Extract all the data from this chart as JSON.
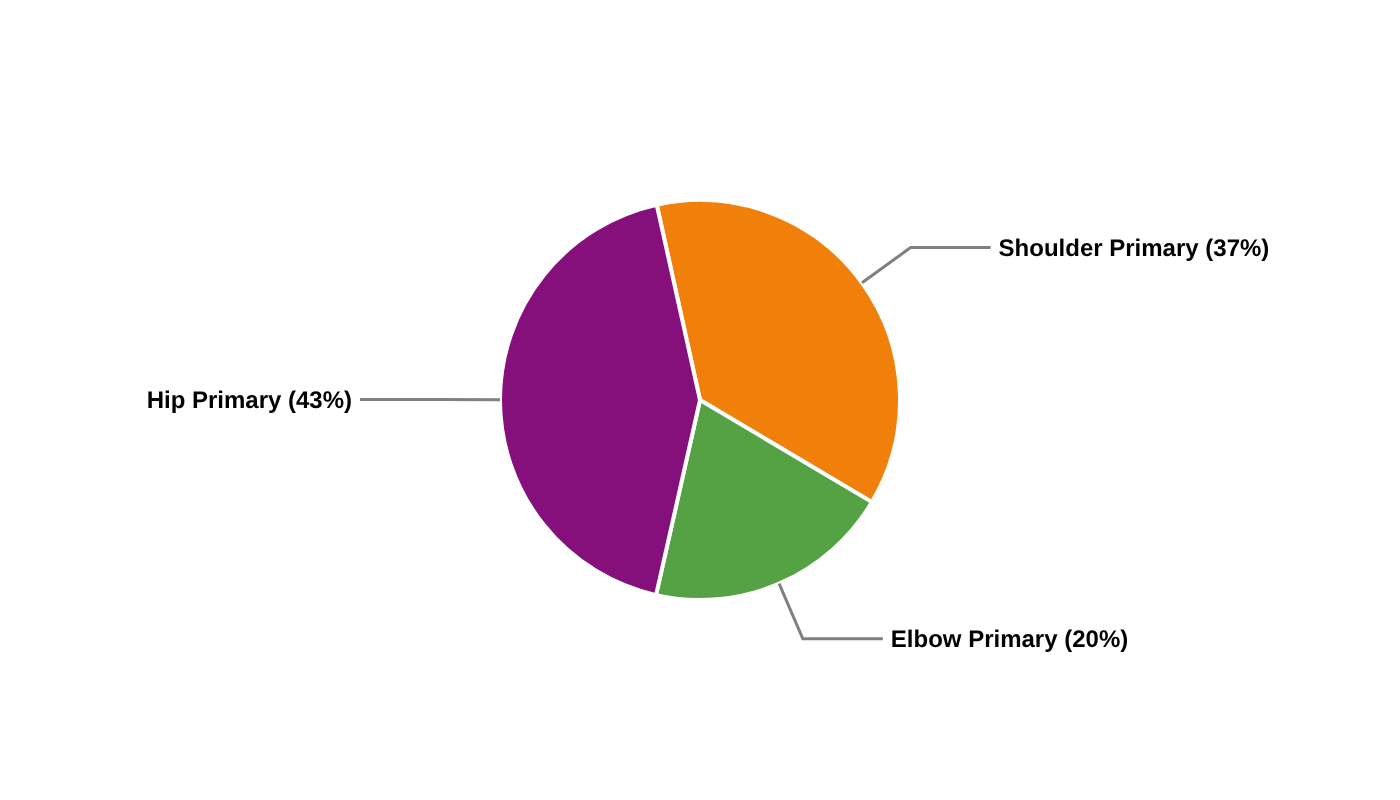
{
  "chart_data": {
    "type": "pie",
    "categories": [
      "Shoulder Primary",
      "Elbow Primary",
      "Hip Primary"
    ],
    "values": [
      37,
      20,
      43
    ],
    "colors": [
      "#f0800a",
      "#54a244",
      "#850f7b"
    ],
    "value_labels": [
      "(37%)",
      "(20%)",
      "(43%)"
    ]
  }
}
